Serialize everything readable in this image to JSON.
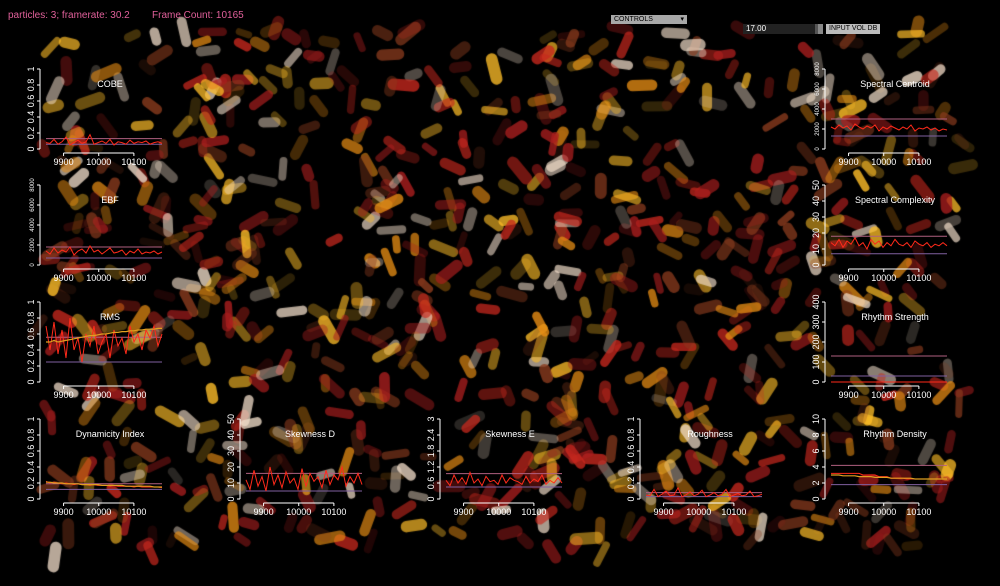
{
  "hud": {
    "particles_text": "particles: 3; framerate: 30.2",
    "frame_count_text": "Frame Count: 10165"
  },
  "controls": {
    "dropdown_label": "CONTROLS",
    "slider_value": "17.00",
    "slider_label": "INPUT VOL DB"
  },
  "colors": {
    "hud_text": "#e0609a",
    "series_main": "#ff2a1a",
    "series_smooth": "#e0a020",
    "ref_upper": "#b06080",
    "ref_lower": "#8060a0",
    "axis": "#ffffff"
  },
  "chart_data": [
    {
      "id": "cobe",
      "type": "line",
      "title": "COBE",
      "xlabel": "",
      "ylabel": "",
      "xlim": [
        9850,
        10180
      ],
      "ylim": [
        0,
        1
      ],
      "xticks": [
        9900,
        10000,
        10100
      ],
      "yticks": [
        0,
        0.2,
        0.4,
        0.6,
        0.8,
        1
      ],
      "ytick_labels": [
        "0",
        "0.2",
        "0.4",
        "0.6",
        "0.8",
        "1"
      ],
      "series": [
        {
          "values": [
            0.08,
            0.07,
            0.12,
            0.06,
            0.09,
            0.15,
            0.05,
            0.08,
            0.11,
            0.07,
            0.09,
            0.18,
            0.06,
            0.08,
            0.1,
            0.07,
            0.12,
            0.05,
            0.09,
            0.08,
            0.06,
            0.11,
            0.07,
            0.09,
            0.08,
            0.1,
            0.06,
            0.08,
            0.09,
            0.07
          ]
        }
      ],
      "hlines": [
        0.13,
        0.06
      ]
    },
    {
      "id": "ebf",
      "type": "line",
      "title": "EBF",
      "xlabel": "",
      "ylabel": "",
      "xlim": [
        9850,
        10180
      ],
      "ylim": [
        0,
        8000
      ],
      "xticks": [
        9900,
        10000,
        10100
      ],
      "yticks": [
        0,
        2000,
        4000,
        6000,
        8000
      ],
      "ytick_labels": [
        "0",
        "2000",
        "4000",
        "6000",
        "8000"
      ],
      "series": [
        {
          "values": [
            1400,
            1100,
            1700,
            1200,
            1500,
            1300,
            1800,
            1000,
            1400,
            1600,
            1200,
            1900,
            1300,
            1500,
            1100,
            1400,
            1700,
            1200,
            1300,
            1500,
            1000,
            1400,
            1200,
            1600,
            1100,
            1300,
            1200,
            1400,
            1100,
            1300
          ]
        }
      ],
      "hlines": [
        1800,
        700
      ]
    },
    {
      "id": "rms",
      "type": "line",
      "title": "RMS",
      "xlabel": "",
      "ylabel": "",
      "xlim": [
        9850,
        10180
      ],
      "ylim": [
        0,
        1
      ],
      "xticks": [
        9900,
        10000,
        10100
      ],
      "yticks": [
        0,
        0.2,
        0.4,
        0.6,
        0.8,
        1
      ],
      "ytick_labels": [
        "0",
        "0.2",
        "0.4",
        "0.6",
        "0.8",
        "1"
      ],
      "series": [
        {
          "values": [
            0.7,
            0.4,
            0.75,
            0.35,
            0.65,
            0.3,
            0.8,
            0.4,
            0.55,
            0.25,
            0.6,
            0.45,
            0.7,
            0.35,
            0.5,
            0.6,
            0.3,
            0.65,
            0.45,
            0.55,
            0.35,
            0.7,
            0.5,
            0.6,
            0.4,
            0.65,
            0.55,
            0.7,
            0.45,
            0.6
          ]
        }
      ],
      "smooth": [
        0.5,
        0.5,
        0.52,
        0.5,
        0.51,
        0.52,
        0.53,
        0.54,
        0.55,
        0.56,
        0.57,
        0.58,
        0.58,
        0.59,
        0.6,
        0.6,
        0.61,
        0.62,
        0.62,
        0.63,
        0.63,
        0.64,
        0.64,
        0.65,
        0.65,
        0.66,
        0.66,
        0.66,
        0.67,
        0.67
      ],
      "hlines": [
        0.56,
        0.25
      ]
    },
    {
      "id": "dyn",
      "type": "line",
      "title": "Dynamicity Index",
      "xlabel": "",
      "ylabel": "",
      "xlim": [
        9850,
        10180
      ],
      "ylim": [
        0,
        1
      ],
      "xticks": [
        9900,
        10000,
        10100
      ],
      "yticks": [
        0,
        0.2,
        0.4,
        0.6,
        0.8,
        1
      ],
      "ytick_labels": [
        "0",
        "0.2",
        "0.4",
        "0.6",
        "0.8",
        "1"
      ],
      "series": [
        {
          "values": [
            0.22,
            0.2,
            0.21,
            0.2,
            0.19,
            0.2,
            0.19,
            0.18,
            0.19,
            0.18,
            0.18,
            0.17,
            0.18,
            0.17,
            0.17,
            0.17,
            0.16,
            0.17,
            0.16,
            0.16,
            0.16,
            0.16,
            0.15,
            0.16,
            0.15,
            0.15,
            0.15,
            0.15,
            0.15,
            0.14
          ]
        }
      ],
      "smooth": [
        0.21,
        0.21,
        0.2,
        0.2,
        0.2,
        0.19,
        0.19,
        0.19,
        0.19,
        0.18,
        0.18,
        0.18,
        0.18,
        0.18,
        0.17,
        0.17,
        0.17,
        0.17,
        0.17,
        0.17,
        0.16,
        0.16,
        0.16,
        0.16,
        0.16,
        0.16,
        0.16,
        0.15,
        0.15,
        0.15
      ],
      "hlines": [
        0.19,
        0.12
      ]
    },
    {
      "id": "skd",
      "type": "line",
      "title": "Skewness D",
      "xlabel": "",
      "ylabel": "",
      "xlim": [
        9850,
        10180
      ],
      "ylim": [
        0,
        50
      ],
      "xticks": [
        9900,
        10000,
        10100
      ],
      "yticks": [
        0,
        10,
        20,
        30,
        40,
        50
      ],
      "ytick_labels": [
        "0",
        "10",
        "20",
        "30",
        "40",
        "50"
      ],
      "series": [
        {
          "values": [
            12,
            6,
            18,
            8,
            14,
            5,
            20,
            9,
            15,
            7,
            17,
            10,
            13,
            6,
            19,
            8,
            16,
            11,
            14,
            7,
            18,
            9,
            15,
            12,
            20,
            8,
            14,
            10,
            16,
            9
          ]
        }
      ],
      "hlines": [
        16,
        5
      ]
    },
    {
      "id": "ske",
      "type": "line",
      "title": "Skewness E",
      "xlabel": "",
      "ylabel": "",
      "xlim": [
        9850,
        10180
      ],
      "ylim": [
        0,
        3
      ],
      "xticks": [
        9900,
        10000,
        10100
      ],
      "yticks": [
        0,
        0.6,
        1.2,
        1.8,
        2.4,
        3
      ],
      "ytick_labels": [
        "0",
        "0.6",
        "1.2",
        "1.8",
        "2.4",
        "3"
      ],
      "series": [
        {
          "values": [
            0.7,
            0.5,
            0.9,
            0.6,
            0.8,
            0.55,
            1.0,
            0.6,
            0.75,
            0.5,
            0.85,
            0.65,
            0.7,
            0.55,
            0.9,
            0.6,
            0.8,
            0.7,
            0.65,
            0.55,
            0.85,
            0.6,
            0.75,
            0.65,
            0.9,
            0.55,
            0.7,
            0.6,
            0.8,
            0.6
          ]
        }
      ],
      "hlines": [
        0.95,
        0.45
      ]
    },
    {
      "id": "rough",
      "type": "line",
      "title": "Roughness",
      "xlabel": "",
      "ylabel": "",
      "xlim": [
        9850,
        10180
      ],
      "ylim": [
        0,
        1
      ],
      "xticks": [
        9900,
        10000,
        10100
      ],
      "yticks": [
        0,
        0.2,
        0.4,
        0.6,
        0.8,
        1
      ],
      "ytick_labels": [
        "0",
        "0.2",
        "0.4",
        "0.6",
        "0.8",
        "1"
      ],
      "series": [
        {
          "values": [
            0.05,
            0.04,
            0.12,
            0.03,
            0.06,
            0.1,
            0.04,
            0.05,
            0.14,
            0.03,
            0.05,
            0.09,
            0.04,
            0.06,
            0.11,
            0.03,
            0.05,
            0.08,
            0.04,
            0.06,
            0.12,
            0.03,
            0.05,
            0.07,
            0.04,
            0.05,
            0.1,
            0.03,
            0.04,
            0.06
          ]
        }
      ],
      "hlines": [
        0.08,
        0.03
      ]
    },
    {
      "id": "centroid",
      "type": "line",
      "title": "Spectral Centroid",
      "xlabel": "",
      "ylabel": "",
      "xlim": [
        9850,
        10180
      ],
      "ylim": [
        0,
        8000
      ],
      "xticks": [
        9900,
        10000,
        10100
      ],
      "yticks": [
        0,
        2000,
        4000,
        6000,
        8000
      ],
      "ytick_labels": [
        "0",
        "2000",
        "4000",
        "6000",
        "8000"
      ],
      "series": [
        {
          "values": [
            2200,
            2000,
            2400,
            2100,
            2300,
            1900,
            2500,
            2200,
            2000,
            2300,
            2100,
            2400,
            1800,
            2200,
            2000,
            2300,
            2100,
            1900,
            2200,
            2000,
            2400,
            1800,
            2100,
            2000,
            2200,
            1900,
            2100,
            1800,
            2000,
            1900
          ]
        }
      ],
      "hlines": [
        3000,
        1300
      ]
    },
    {
      "id": "complexity",
      "type": "line",
      "title": "Spectral Complexity",
      "xlabel": "",
      "ylabel": "",
      "xlim": [
        9850,
        10180
      ],
      "ylim": [
        0,
        50
      ],
      "xticks": [
        9900,
        10000,
        10100
      ],
      "yticks": [
        0,
        10,
        20,
        30,
        40,
        50
      ],
      "ytick_labels": [
        "0",
        "10",
        "20",
        "30",
        "40",
        "50"
      ],
      "series": [
        {
          "values": [
            14,
            12,
            16,
            11,
            15,
            13,
            17,
            12,
            14,
            10,
            16,
            13,
            15,
            11,
            14,
            12,
            16,
            13,
            12,
            14,
            11,
            15,
            13,
            12,
            14,
            11,
            13,
            12,
            14,
            12
          ]
        }
      ],
      "hlines": [
        18,
        7
      ]
    },
    {
      "id": "rstrength",
      "type": "line",
      "title": "Rhythm Strength",
      "xlabel": "",
      "ylabel": "",
      "xlim": [
        9850,
        10180
      ],
      "ylim": [
        0,
        400
      ],
      "xticks": [
        9900,
        10000,
        10100
      ],
      "yticks": [
        0,
        100,
        200,
        300,
        400
      ],
      "ytick_labels": [
        "0",
        "100",
        "200",
        "300",
        "400"
      ],
      "series": [
        {
          "values": [
            0,
            0,
            0,
            0,
            0,
            0,
            0,
            0,
            0,
            0,
            0,
            0,
            0,
            0,
            0,
            0,
            0,
            0,
            0,
            0,
            0,
            0,
            0,
            0,
            0,
            0,
            0,
            0,
            0,
            0
          ]
        }
      ],
      "hlines": [
        130,
        30
      ]
    },
    {
      "id": "rdensity",
      "type": "line",
      "title": "Rhythm Density",
      "xlabel": "",
      "ylabel": "",
      "xlim": [
        9850,
        10180
      ],
      "ylim": [
        0,
        10
      ],
      "xticks": [
        9900,
        10000,
        10100
      ],
      "yticks": [
        0,
        2,
        4,
        6,
        8,
        10
      ],
      "ytick_labels": [
        "0",
        "2",
        "4",
        "6",
        "8",
        "10"
      ],
      "series": [
        {
          "values": [
            3.2,
            3.2,
            3.2,
            3.2,
            3.2,
            3.2,
            3.2,
            3.2,
            3.0,
            3.0,
            3.0,
            3.0,
            2.8,
            2.8,
            2.8,
            2.6,
            2.6,
            2.6,
            2.6,
            2.5,
            2.5,
            2.5,
            2.5,
            2.5,
            2.5,
            2.5,
            2.5,
            2.5,
            2.5,
            2.5
          ]
        }
      ],
      "smooth": [
        3.0,
        3.0,
        3.0,
        2.9,
        2.9,
        2.9,
        2.9,
        2.8,
        2.8,
        2.8,
        2.8,
        2.7,
        2.7,
        2.7,
        2.7,
        2.6,
        2.6,
        2.6,
        2.6,
        2.6,
        2.6,
        2.5,
        2.5,
        2.5,
        2.5,
        2.5,
        2.5,
        2.5,
        2.5,
        2.5
      ],
      "hlines": [
        4.2,
        1.8
      ]
    }
  ]
}
